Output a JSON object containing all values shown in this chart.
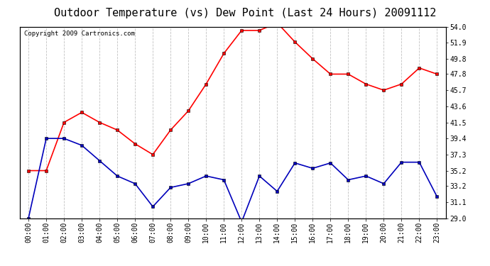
{
  "title": "Outdoor Temperature (vs) Dew Point (Last 24 Hours) 20091112",
  "copyright": "Copyright 2009 Cartronics.com",
  "x_labels": [
    "00:00",
    "01:00",
    "02:00",
    "03:00",
    "04:00",
    "05:00",
    "06:00",
    "07:00",
    "08:00",
    "09:00",
    "10:00",
    "11:00",
    "12:00",
    "13:00",
    "14:00",
    "15:00",
    "16:00",
    "17:00",
    "18:00",
    "19:00",
    "20:00",
    "21:00",
    "22:00",
    "23:00"
  ],
  "temp_data": [
    35.2,
    35.2,
    41.5,
    42.8,
    41.5,
    40.5,
    38.7,
    37.3,
    40.5,
    43.0,
    46.5,
    50.5,
    53.5,
    53.5,
    54.5,
    52.0,
    49.8,
    47.8,
    47.8,
    46.5,
    45.7,
    46.5,
    48.6,
    47.8
  ],
  "dew_data": [
    29.0,
    39.4,
    39.4,
    38.5,
    36.5,
    34.5,
    33.5,
    30.5,
    33.0,
    33.5,
    34.5,
    34.0,
    28.5,
    34.5,
    32.5,
    36.2,
    35.5,
    36.2,
    34.0,
    34.5,
    33.5,
    36.3,
    36.3,
    31.8
  ],
  "temp_color": "#ff0000",
  "dew_color": "#0000bb",
  "bg_color": "#ffffff",
  "grid_color": "#bbbbbb",
  "y_ticks": [
    29.0,
    31.1,
    33.2,
    35.2,
    37.3,
    39.4,
    41.5,
    43.6,
    45.7,
    47.8,
    49.8,
    51.9,
    54.0
  ],
  "y_min": 29.0,
  "y_max": 54.0,
  "title_fontsize": 11,
  "copyright_fontsize": 6.5,
  "tick_fontsize": 7,
  "marker": "s",
  "marker_size": 2.5,
  "line_width": 1.2
}
